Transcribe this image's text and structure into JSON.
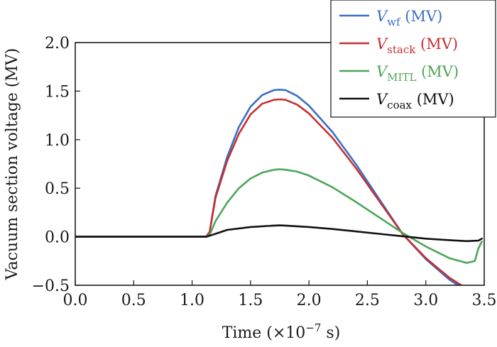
{
  "chart_data": {
    "type": "line",
    "xlabel": "Time (×10",
    "xlabel_exp": "−7",
    "xlabel_unit": " s)",
    "ylabel": "Vacuum section voltage (MV)",
    "xlim": [
      0.0,
      3.5
    ],
    "ylim": [
      -0.5,
      2.0
    ],
    "xticks": [
      "0.0",
      "0.5",
      "1.0",
      "1.5",
      "2.0",
      "2.5",
      "3.0",
      "3.5"
    ],
    "yticks": [
      "−0.5",
      "0.0",
      "0.5",
      "1.0",
      "1.5",
      "2.0"
    ],
    "grid": false,
    "legend_position": "top-right",
    "series": [
      {
        "name_main": "V",
        "name_sub": "wf",
        "name_unit": " (MV)",
        "color": "#3a6fc4",
        "x": [
          0.0,
          1.12,
          1.15,
          1.2,
          1.3,
          1.4,
          1.5,
          1.6,
          1.7,
          1.75,
          1.8,
          1.9,
          2.0,
          2.2,
          2.4,
          2.6,
          2.8,
          3.0,
          3.2,
          3.3
        ],
        "y": [
          0.0,
          0.0,
          0.05,
          0.42,
          0.82,
          1.13,
          1.34,
          1.46,
          1.51,
          1.515,
          1.51,
          1.45,
          1.35,
          1.08,
          0.75,
          0.39,
          0.03,
          -0.23,
          -0.44,
          -0.52
        ]
      },
      {
        "name_main": "V",
        "name_sub": "stack",
        "name_unit": " (MV)",
        "color": "#c62f33",
        "x": [
          0.0,
          1.12,
          1.15,
          1.2,
          1.3,
          1.4,
          1.5,
          1.6,
          1.7,
          1.75,
          1.8,
          1.9,
          2.0,
          2.2,
          2.4,
          2.6,
          2.8,
          3.0,
          3.2,
          3.33
        ],
        "y": [
          0.0,
          0.0,
          0.05,
          0.4,
          0.78,
          1.06,
          1.26,
          1.37,
          1.41,
          1.415,
          1.41,
          1.36,
          1.27,
          1.02,
          0.71,
          0.37,
          0.03,
          -0.22,
          -0.42,
          -0.52
        ]
      },
      {
        "name_main": "V",
        "name_sub": "MITL",
        "name_unit": " (MV)",
        "color": "#4ca55a",
        "x": [
          0.0,
          1.12,
          1.15,
          1.2,
          1.3,
          1.4,
          1.5,
          1.6,
          1.7,
          1.75,
          1.8,
          1.9,
          2.0,
          2.2,
          2.4,
          2.6,
          2.8,
          3.0,
          3.2,
          3.35,
          3.42,
          3.45,
          3.48
        ],
        "y": [
          0.0,
          0.0,
          0.02,
          0.16,
          0.35,
          0.5,
          0.6,
          0.66,
          0.69,
          0.695,
          0.69,
          0.67,
          0.63,
          0.51,
          0.36,
          0.2,
          0.04,
          -0.1,
          -0.22,
          -0.27,
          -0.25,
          -0.12,
          -0.05
        ]
      },
      {
        "name_main": "V",
        "name_sub": "coax",
        "name_unit": " (MV)",
        "color": "#111111",
        "x": [
          0.0,
          1.12,
          1.15,
          1.2,
          1.3,
          1.5,
          1.7,
          1.75,
          1.8,
          2.0,
          2.2,
          2.4,
          2.6,
          2.8,
          3.0,
          3.2,
          3.35,
          3.45,
          3.48
        ],
        "y": [
          0.0,
          0.0,
          0.01,
          0.03,
          0.07,
          0.1,
          0.115,
          0.117,
          0.115,
          0.1,
          0.08,
          0.055,
          0.03,
          0.005,
          -0.02,
          -0.035,
          -0.045,
          -0.04,
          -0.02
        ]
      }
    ]
  }
}
